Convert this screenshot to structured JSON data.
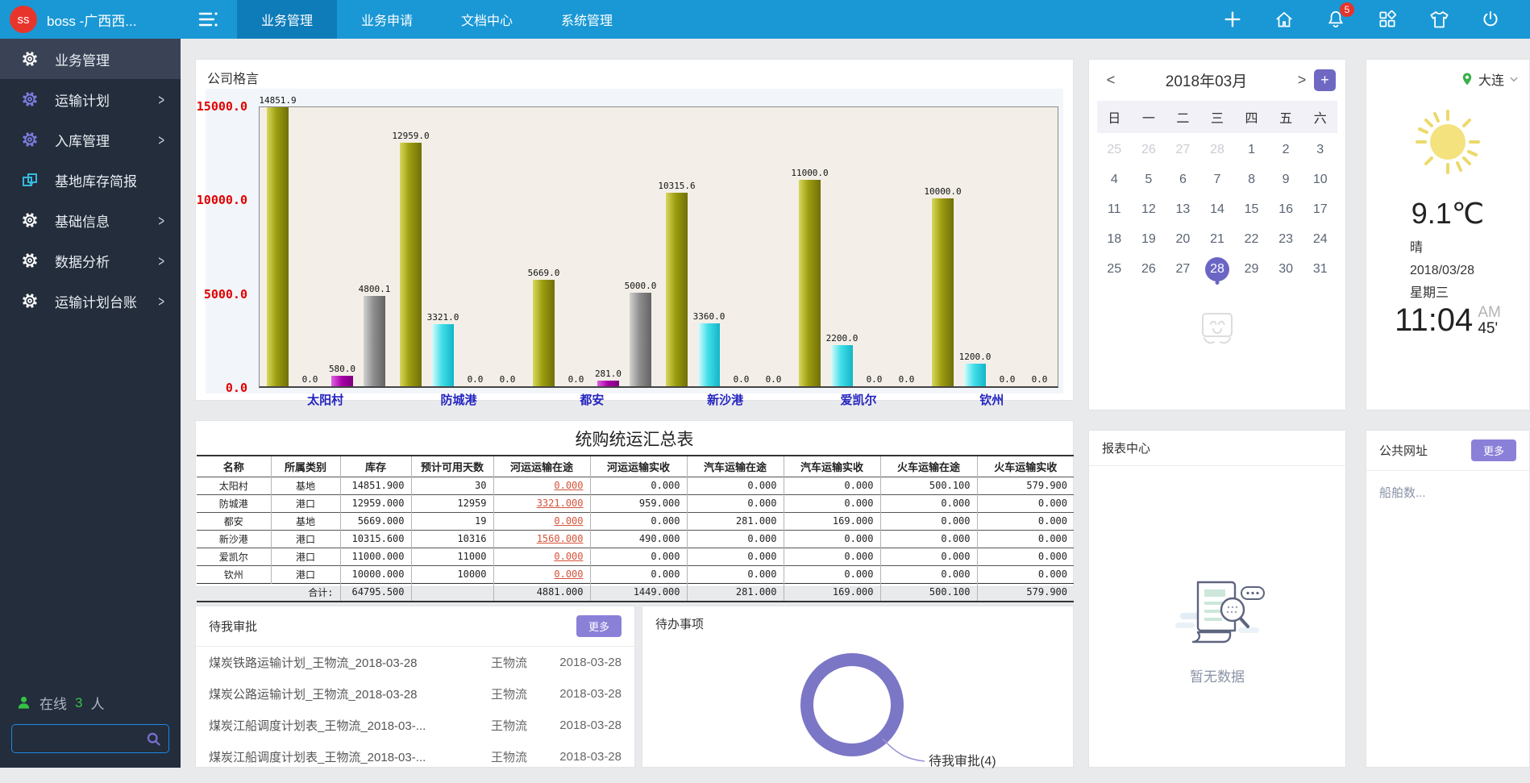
{
  "header": {
    "logo_initials": "ss",
    "logo_title": "boss -广西西...",
    "tabs": [
      {
        "label": "业务管理",
        "active": true
      },
      {
        "label": "业务申请",
        "active": false
      },
      {
        "label": "文档中心",
        "active": false
      },
      {
        "label": "系统管理",
        "active": false
      }
    ],
    "notification_count": "5"
  },
  "sidebar": {
    "items": [
      {
        "label": "业务管理",
        "icon": "gear-icon",
        "icon_color": "#ffffff",
        "active": true,
        "chevron": false
      },
      {
        "label": "运输计划",
        "icon": "gear-icon",
        "icon_color": "#7c7ce0",
        "active": false,
        "chevron": true
      },
      {
        "label": "入库管理",
        "icon": "gear-icon",
        "icon_color": "#7c7ce0",
        "active": false,
        "chevron": true
      },
      {
        "label": "基地库存简报",
        "icon": "report-icon",
        "icon_color": "#35b8dc",
        "active": false,
        "chevron": false
      },
      {
        "label": "基础信息",
        "icon": "gear-icon",
        "icon_color": "#ffffff",
        "active": false,
        "chevron": true
      },
      {
        "label": "数据分析",
        "icon": "gear-icon",
        "icon_color": "#ffffff",
        "active": false,
        "chevron": true
      },
      {
        "label": "运输计划台账",
        "icon": "gear-icon",
        "icon_color": "#ffffff",
        "active": false,
        "chevron": true
      }
    ],
    "online_label": "在线",
    "online_count": "3",
    "online_unit": "人",
    "search_placeholder": ""
  },
  "motto_panel": {
    "title": "公司格言"
  },
  "chart_data": {
    "type": "bar",
    "title": "公司格言",
    "categories": [
      "太阳村",
      "防城港",
      "都安",
      "新沙港",
      "爱凯尔",
      "钦州"
    ],
    "series": [
      {
        "name": "olive",
        "color": "#9c9c10",
        "values": [
          14851.9,
          12959.0,
          5669.0,
          10315.6,
          11000.0,
          10000.0
        ]
      },
      {
        "name": "cyan",
        "color": "#3adce8",
        "values": [
          0.0,
          3321.0,
          0.0,
          3360.0,
          2200.0,
          1200.0
        ]
      },
      {
        "name": "magenta",
        "color": "#aa00aa",
        "values": [
          580.0,
          0.0,
          281.0,
          0.0,
          0.0,
          0.0
        ]
      },
      {
        "name": "gray",
        "color": "#8a8a8a",
        "values": [
          4800.1,
          0.0,
          5000.0,
          0.0,
          0.0,
          0.0
        ]
      }
    ],
    "ylim": [
      0,
      15000
    ],
    "yticks": [
      15000.0,
      10000.0,
      5000.0,
      0.0
    ],
    "grid": false,
    "legend": "none",
    "ylabel_color": "#e00000",
    "xlabel_color": "#2424c0"
  },
  "summary_table": {
    "title": "统购统运汇总表",
    "columns": [
      "名称",
      "所属类别",
      "库存",
      "预计可用天数",
      "河运运输在途",
      "河运运输实收",
      "汽车运输在途",
      "汽车运输实收",
      "火车运输在途",
      "火车运输实收"
    ],
    "link_column": 4,
    "rows": [
      [
        "太阳村",
        "基地",
        "14851.900",
        "30",
        "0.000",
        "0.000",
        "0.000",
        "0.000",
        "500.100",
        "579.900"
      ],
      [
        "防城港",
        "港口",
        "12959.000",
        "12959",
        "3321.000",
        "959.000",
        "0.000",
        "0.000",
        "0.000",
        "0.000"
      ],
      [
        "都安",
        "基地",
        "5669.000",
        "19",
        "0.000",
        "0.000",
        "281.000",
        "169.000",
        "0.000",
        "0.000"
      ],
      [
        "新沙港",
        "港口",
        "10315.600",
        "10316",
        "1560.000",
        "490.000",
        "0.000",
        "0.000",
        "0.000",
        "0.000"
      ],
      [
        "爱凯尔",
        "港口",
        "11000.000",
        "11000",
        "0.000",
        "0.000",
        "0.000",
        "0.000",
        "0.000",
        "0.000"
      ],
      [
        "钦州",
        "港口",
        "10000.000",
        "10000",
        "0.000",
        "0.000",
        "0.000",
        "0.000",
        "0.000",
        "0.000"
      ]
    ],
    "total_label": "合计:",
    "totals": [
      "64795.500",
      "",
      "4881.000",
      "1449.000",
      "281.000",
      "169.000",
      "500.100",
      "579.900"
    ]
  },
  "approvals": {
    "title": "待我审批",
    "more_label": "更多",
    "items": [
      {
        "name": "煤炭铁路运输计划_王物流_2018-03-28",
        "user": "王物流",
        "date": "2018-03-28"
      },
      {
        "name": "煤炭公路运输计划_王物流_2018-03-28",
        "user": "王物流",
        "date": "2018-03-28"
      },
      {
        "name": "煤炭江船调度计划表_王物流_2018-03-...",
        "user": "王物流",
        "date": "2018-03-28"
      },
      {
        "name": "煤炭江船调度计划表_王物流_2018-03-...",
        "user": "王物流",
        "date": "2018-03-28"
      }
    ]
  },
  "todos": {
    "title": "待办事项",
    "donut_label": "待我审批(4)",
    "donut_value": 4,
    "donut_color": "#7b76c5"
  },
  "calendar": {
    "month_title": "2018年03月",
    "prev_label": "<",
    "next_label": ">",
    "add_label": "+",
    "weekdays": [
      "日",
      "一",
      "二",
      "三",
      "四",
      "五",
      "六"
    ],
    "days": [
      {
        "d": "25",
        "muted": true
      },
      {
        "d": "26",
        "muted": true
      },
      {
        "d": "27",
        "muted": true
      },
      {
        "d": "28",
        "muted": true
      },
      {
        "d": "1"
      },
      {
        "d": "2"
      },
      {
        "d": "3"
      },
      {
        "d": "4"
      },
      {
        "d": "5"
      },
      {
        "d": "6"
      },
      {
        "d": "7"
      },
      {
        "d": "8"
      },
      {
        "d": "9"
      },
      {
        "d": "10"
      },
      {
        "d": "11"
      },
      {
        "d": "12"
      },
      {
        "d": "13"
      },
      {
        "d": "14"
      },
      {
        "d": "15"
      },
      {
        "d": "16"
      },
      {
        "d": "17"
      },
      {
        "d": "18"
      },
      {
        "d": "19"
      },
      {
        "d": "20"
      },
      {
        "d": "21"
      },
      {
        "d": "22"
      },
      {
        "d": "23"
      },
      {
        "d": "24"
      },
      {
        "d": "25"
      },
      {
        "d": "26"
      },
      {
        "d": "27"
      },
      {
        "d": "28",
        "selected": true
      },
      {
        "d": "29"
      },
      {
        "d": "30"
      },
      {
        "d": "31"
      }
    ]
  },
  "weather": {
    "city": "大连",
    "temperature": "9.1℃",
    "condition": "晴",
    "date": "2018/03/28",
    "weekday": "星期三",
    "time": "11:04",
    "meridiem": "AM",
    "minutes": "45'"
  },
  "reports": {
    "title": "报表中心",
    "empty_text": "暂无数据"
  },
  "links_panel": {
    "title": "公共网址",
    "more_label": "更多",
    "items": [
      "船舶数..."
    ]
  }
}
